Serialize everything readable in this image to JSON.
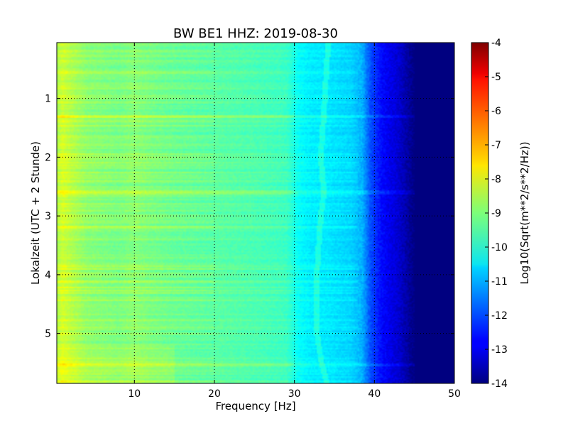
{
  "chart_data": {
    "type": "heatmap",
    "title": "BW BE1 HHZ: 2019-08-30",
    "xlabel": "Frequency [Hz]",
    "ylabel": "Lokalzeit (UTC + 2 Stunde)",
    "colorbar_label": "Log10(Sqrt(m**2/s**2/Hz))",
    "colormap": "jet",
    "xlim": [
      0.3,
      50
    ],
    "ylim": [
      5.85,
      0.05
    ],
    "y_inverted": true,
    "x_ticks": [
      "10",
      "20",
      "30",
      "40",
      "50"
    ],
    "x_tick_values": [
      10,
      20,
      30,
      40,
      50
    ],
    "y_ticks": [
      "1",
      "2",
      "3",
      "4",
      "5"
    ],
    "y_tick_values": [
      1,
      2,
      3,
      4,
      5
    ],
    "color_range": [
      -14,
      -4
    ],
    "colorbar_ticks": [
      "-4",
      "-5",
      "-6",
      "-7",
      "-8",
      "-9",
      "-10",
      "-11",
      "-12",
      "-13",
      "-14"
    ],
    "colorbar_tick_values": [
      -4,
      -5,
      -6,
      -7,
      -8,
      -9,
      -10,
      -11,
      -12,
      -13,
      -14
    ],
    "grid": true,
    "spectral_profile": {
      "frequency_hz": [
        0.3,
        1,
        2,
        4,
        6,
        8,
        10,
        12,
        15,
        20,
        25,
        29,
        30.5,
        32,
        34,
        37,
        38.5,
        39.5,
        41,
        43,
        45,
        50
      ],
      "log_amplitude": [
        -8.6,
        -8.2,
        -8.45,
        -8.85,
        -8.95,
        -9.05,
        -8.9,
        -9.05,
        -9.2,
        -9.35,
        -9.5,
        -9.65,
        -10.2,
        -10.4,
        -10.45,
        -10.65,
        -11.0,
        -12.0,
        -12.7,
        -13.2,
        -14.0,
        -14.0
      ]
    },
    "narrowband_line": {
      "hours": [
        0.1,
        1,
        2,
        2.6,
        3,
        4,
        5,
        5.5,
        5.85
      ],
      "frequency_hz": [
        34.2,
        33.8,
        33.3,
        33.7,
        33.3,
        32.8,
        32.8,
        33.4,
        34.1
      ]
    },
    "broadband_events_hours": [
      1.3,
      2.6,
      5.53
    ]
  }
}
